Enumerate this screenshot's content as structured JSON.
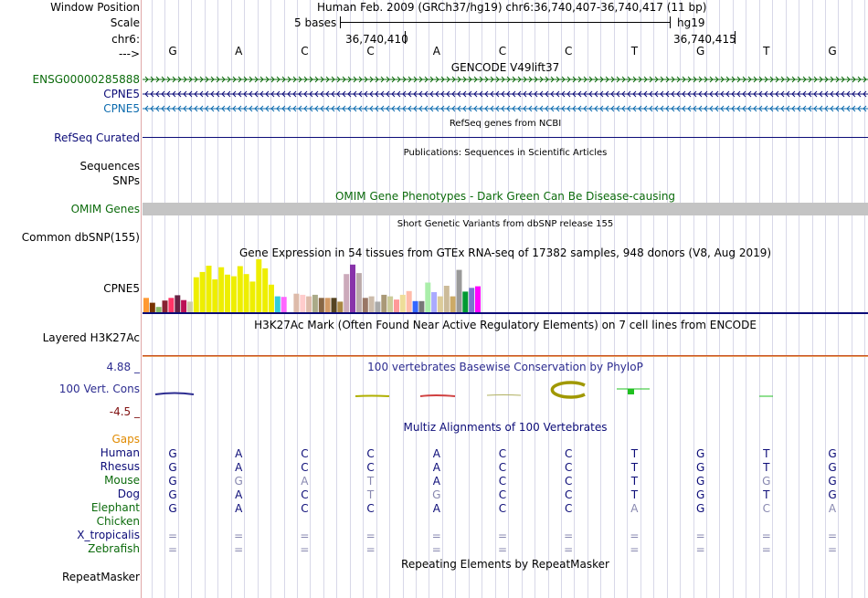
{
  "header": {
    "window_position_label": "Window Position",
    "scale_label": "Scale",
    "chr_label": "chr6:",
    "arrow_label": "--->",
    "assembly_title": "Human Feb. 2009 (GRCh37/hg19)   chr6:36,740,407-36,740,417 (11 bp)",
    "scale_text": "5 bases",
    "scale_db": "hg19",
    "pos1": "36,740,410",
    "pos2": "36,740,415"
  },
  "bases": [
    "G",
    "A",
    "C",
    "C",
    "A",
    "C",
    "C",
    "T",
    "G",
    "T",
    "G"
  ],
  "tracks": {
    "gencode": {
      "title": "GENCODE V49lift37",
      "labels": [
        "ENSG00000285888",
        "CPNE5",
        "CPNE5"
      ],
      "colors": [
        "#0c6b0c",
        "#0c0c78",
        "#0c6bae"
      ]
    },
    "refseq": {
      "title": "RefSeq genes from NCBI",
      "label": "RefSeq Curated"
    },
    "publications": {
      "title": "Publications: Sequences in Scientific Articles",
      "labels": [
        "Sequences",
        "SNPs"
      ]
    },
    "omim": {
      "title": "OMIM Gene Phenotypes - Dark Green Can Be Disease-causing",
      "label": "OMIM Genes"
    },
    "dbsnp": {
      "title": "Short Genetic Variants from dbSNP release 155",
      "label": "Common dbSNP(155)"
    },
    "gtex": {
      "title": "Gene Expression in 54 tissues from GTEx RNA-seq of 17382 samples, 948 donors (V8, Aug 2019)",
      "label": "CPNE5",
      "bars": [
        {
          "v": 0.27,
          "c": "#ff9933"
        },
        {
          "v": 0.18,
          "c": "#773300"
        },
        {
          "v": 0.1,
          "c": "#88bb66"
        },
        {
          "v": 0.22,
          "c": "#882233"
        },
        {
          "v": 0.27,
          "c": "#ff3366"
        },
        {
          "v": 0.32,
          "c": "#662244"
        },
        {
          "v": 0.23,
          "c": "#bb1155"
        },
        {
          "v": 0.2,
          "c": "#ccccaa"
        },
        {
          "v": 0.66,
          "c": "#eeee00"
        },
        {
          "v": 0.76,
          "c": "#eeee00"
        },
        {
          "v": 0.88,
          "c": "#eeee00"
        },
        {
          "v": 0.62,
          "c": "#eeee00"
        },
        {
          "v": 0.85,
          "c": "#eeee00"
        },
        {
          "v": 0.71,
          "c": "#eeee00"
        },
        {
          "v": 0.68,
          "c": "#eeee00"
        },
        {
          "v": 0.87,
          "c": "#eeee00"
        },
        {
          "v": 0.72,
          "c": "#eeee00"
        },
        {
          "v": 0.58,
          "c": "#eeee00"
        },
        {
          "v": 1.0,
          "c": "#eeee00"
        },
        {
          "v": 0.83,
          "c": "#eeee00"
        },
        {
          "v": 0.52,
          "c": "#eeee00"
        },
        {
          "v": 0.3,
          "c": "#33ccdd"
        },
        {
          "v": 0.29,
          "c": "#ff66ff"
        },
        {
          "v": 0.0,
          "c": "#ffffff"
        },
        {
          "v": 0.35,
          "c": "#ddbbaa"
        },
        {
          "v": 0.33,
          "c": "#ffcccc"
        },
        {
          "v": 0.3,
          "c": "#ddbbaa"
        },
        {
          "v": 0.33,
          "c": "#aaaa88"
        },
        {
          "v": 0.27,
          "c": "#886644"
        },
        {
          "v": 0.27,
          "c": "#d29a66"
        },
        {
          "v": 0.27,
          "c": "#554422"
        },
        {
          "v": 0.2,
          "c": "#aa8844"
        },
        {
          "v": 0.72,
          "c": "#ccaabb"
        },
        {
          "v": 0.9,
          "c": "#8833aa"
        },
        {
          "v": 0.74,
          "c": "#bbaaaa"
        },
        {
          "v": 0.27,
          "c": "#997766"
        },
        {
          "v": 0.3,
          "c": "#ccbbaa"
        },
        {
          "v": 0.2,
          "c": "#aaaaaa"
        },
        {
          "v": 0.33,
          "c": "#aa9977"
        },
        {
          "v": 0.3,
          "c": "#cccc99"
        },
        {
          "v": 0.24,
          "c": "#ff9999"
        },
        {
          "v": 0.33,
          "c": "#eedd99"
        },
        {
          "v": 0.4,
          "c": "#ffbbaa"
        },
        {
          "v": 0.21,
          "c": "#3366ff"
        },
        {
          "v": 0.21,
          "c": "#777777"
        },
        {
          "v": 0.56,
          "c": "#aaeeaa"
        },
        {
          "v": 0.38,
          "c": "#aaaaff"
        },
        {
          "v": 0.3,
          "c": "#ddcc99"
        },
        {
          "v": 0.5,
          "c": "#ccbb99"
        },
        {
          "v": 0.3,
          "c": "#ccaa66"
        },
        {
          "v": 0.8,
          "c": "#999999"
        },
        {
          "v": 0.39,
          "c": "#009933"
        },
        {
          "v": 0.46,
          "c": "#7777cc"
        },
        {
          "v": 0.49,
          "c": "#ff00ff"
        }
      ]
    },
    "h3k27ac": {
      "title": "H3K27Ac Mark (Often Found Near Active Regulatory Elements) on 7 cell lines from ENCODE",
      "label": "Layered H3K27Ac"
    },
    "phylop": {
      "title": "100 vertebrates Basewise Conservation by PhyloP",
      "label": "100 Vert. Cons",
      "max": "4.88 _",
      "min": "-4.5 _"
    },
    "multiz": {
      "title": "Multiz Alignments of 100 Vertebrates",
      "rows": [
        {
          "name": "Gaps",
          "color": "#e08a00",
          "bases": []
        },
        {
          "name": "Human",
          "color": "#0c0c78",
          "bases": [
            "G",
            "A",
            "C",
            "C",
            "A",
            "C",
            "C",
            "T",
            "G",
            "T",
            "G"
          ]
        },
        {
          "name": "Rhesus",
          "color": "#0c0c78",
          "bases": [
            "G",
            "A",
            "C",
            "C",
            "A",
            "C",
            "C",
            "T",
            "G",
            "T",
            "G"
          ]
        },
        {
          "name": "Mouse",
          "color": "#0c6b0c",
          "bases": [
            "G",
            "G",
            "A",
            "T",
            "A",
            "C",
            "C",
            "T",
            "G",
            "G",
            "G"
          ]
        },
        {
          "name": "Dog",
          "color": "#0c0c78",
          "bases": [
            "G",
            "A",
            "C",
            "T",
            "G",
            "C",
            "C",
            "T",
            "G",
            "T",
            "G"
          ]
        },
        {
          "name": "Elephant",
          "color": "#0c6b0c",
          "bases": [
            "G",
            "A",
            "C",
            "C",
            "A",
            "C",
            "C",
            "A",
            "G",
            "C",
            "A"
          ]
        },
        {
          "name": "Chicken",
          "color": "#0c6b0c",
          "bases": []
        },
        {
          "name": "X_tropicalis",
          "color": "#0c0c78",
          "bases": [
            "=",
            "=",
            "=",
            "=",
            "=",
            "=",
            "=",
            "=",
            "=",
            "=",
            "="
          ]
        },
        {
          "name": "Zebrafish",
          "color": "#0c6b0c",
          "bases": [
            "=",
            "=",
            "=",
            "=",
            "=",
            "=",
            "=",
            "=",
            "=",
            "=",
            "="
          ]
        }
      ]
    },
    "repeatmasker": {
      "title": "Repeating Elements by RepeatMasker",
      "label": "RepeatMasker"
    }
  }
}
